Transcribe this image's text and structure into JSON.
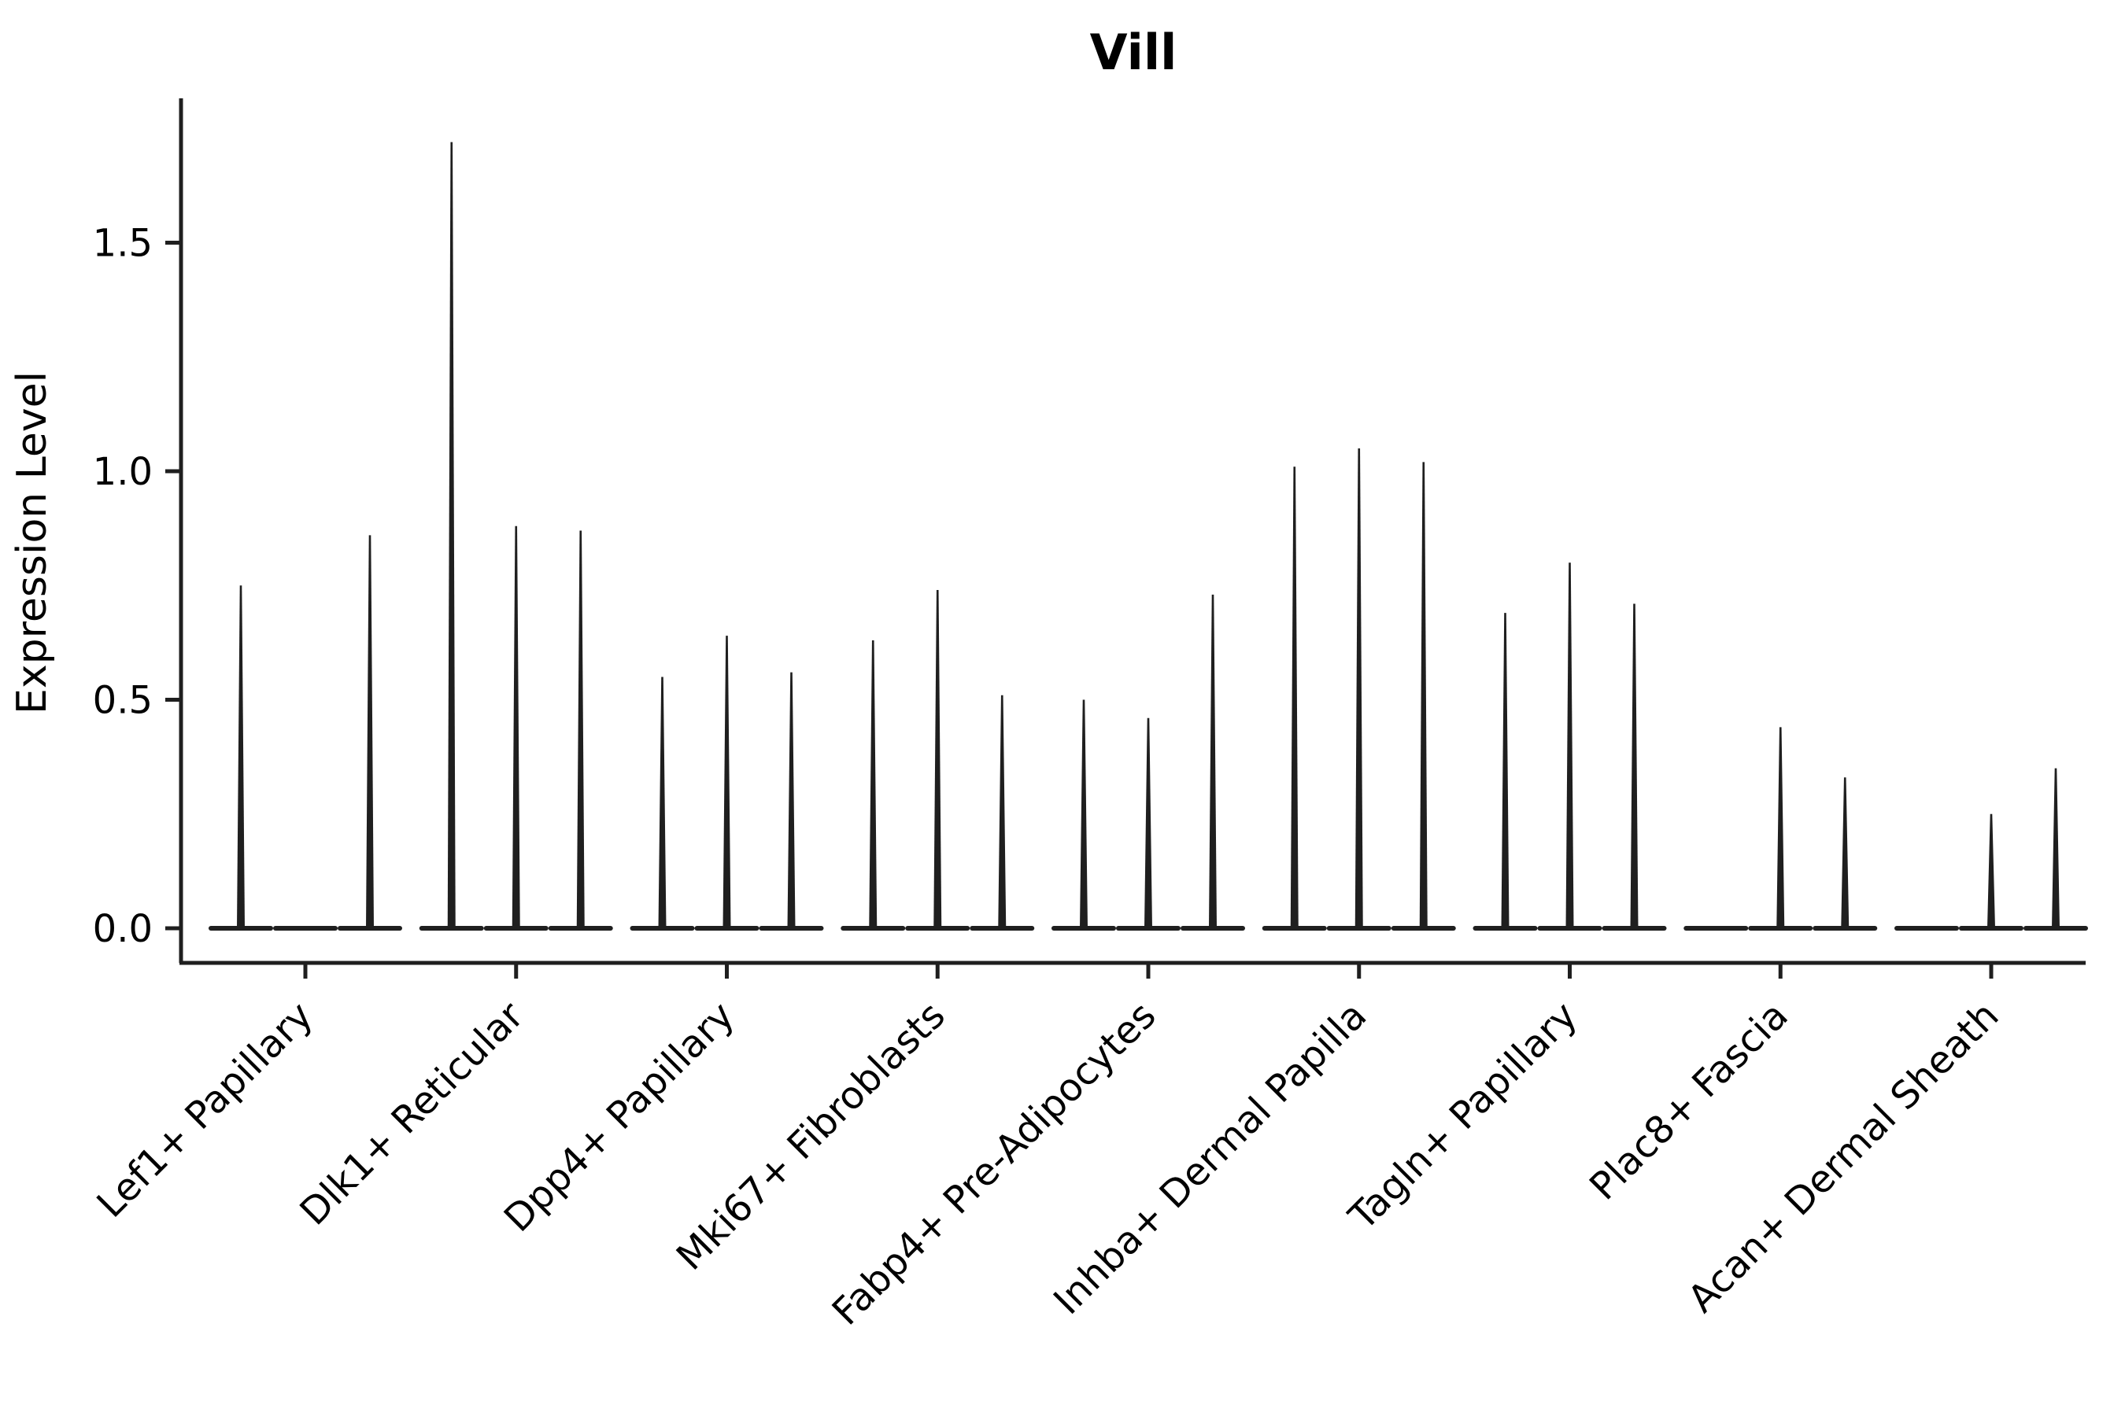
{
  "chart_data": {
    "type": "violin",
    "title": "Vill",
    "xlabel": "",
    "ylabel": "Expression Level",
    "ylim": [
      0,
      1.8
    ],
    "yticks": [
      0.0,
      0.5,
      1.0,
      1.5
    ],
    "grid": false,
    "legend": "none",
    "violins_per_group": 3,
    "note": "Collapsed violins: mass at 0 with thin spikes up to max expression value",
    "categories": [
      "Lef1+ Papillary",
      "Dlk1+ Reticular",
      "Dpp4+ Papillary",
      "Mki67+ Fibroblasts",
      "Fabp4+ Pre-Adipocytes",
      "Inhba+ Dermal Papilla",
      "Tagln+ Papillary",
      "Plac8+ Fascia",
      "Acan+ Dermal Sheath"
    ],
    "series": [
      {
        "name": "violin-1",
        "max_values": [
          0.75,
          1.72,
          0.55,
          0.63,
          0.5,
          1.01,
          0.69,
          0.0,
          0.0
        ]
      },
      {
        "name": "violin-2",
        "max_values": [
          0.0,
          0.88,
          0.64,
          0.74,
          0.46,
          1.05,
          0.8,
          0.44,
          0.25
        ]
      },
      {
        "name": "violin-3",
        "max_values": [
          0.86,
          0.87,
          0.56,
          0.51,
          0.73,
          1.02,
          0.71,
          0.33,
          0.35
        ]
      }
    ]
  },
  "colors": {
    "ink": "#1f1f1f",
    "background": "#ffffff"
  }
}
